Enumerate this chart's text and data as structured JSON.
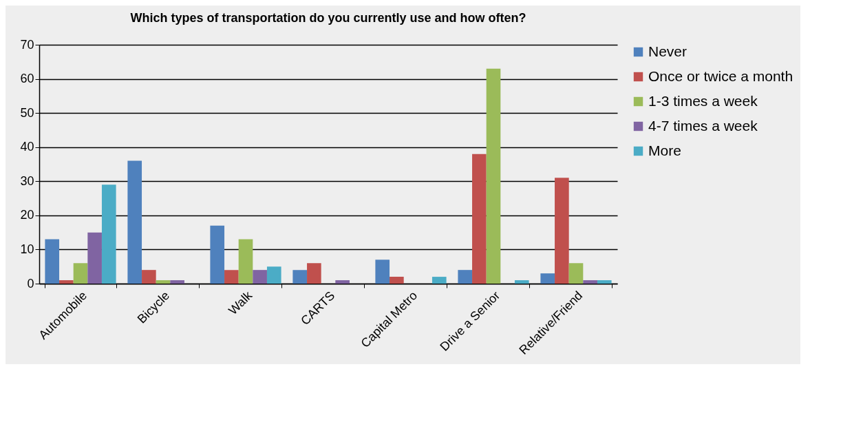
{
  "chart_data": {
    "type": "bar",
    "title": "Which types of transportation do you currently use and how often?",
    "categories": [
      "Automobile",
      "Bicycle",
      "Walk",
      "CARTS",
      "Capital Metro",
      "Drive a Senior",
      "Relative/Friend"
    ],
    "series": [
      {
        "name": "Never",
        "color": "#4f81bd",
        "values": [
          13,
          36,
          17,
          4,
          7,
          4,
          3
        ]
      },
      {
        "name": "Once or twice a month",
        "color": "#c0504d",
        "values": [
          1,
          4,
          4,
          6,
          2,
          38,
          31
        ]
      },
      {
        "name": "1-3 times a week",
        "color": "#9bbb59",
        "values": [
          6,
          1,
          13,
          0,
          0,
          63,
          6
        ]
      },
      {
        "name": "4-7 times a week",
        "color": "#8064a2",
        "values": [
          15,
          1,
          4,
          1,
          0,
          0,
          1
        ]
      },
      {
        "name": "More",
        "color": "#4bacc6",
        "values": [
          29,
          0,
          5,
          0,
          2,
          1,
          1
        ]
      }
    ],
    "ylim": [
      0,
      70
    ],
    "yticks": [
      0,
      10,
      20,
      30,
      40,
      50,
      60,
      70
    ],
    "grid": "y",
    "legend": "right"
  }
}
